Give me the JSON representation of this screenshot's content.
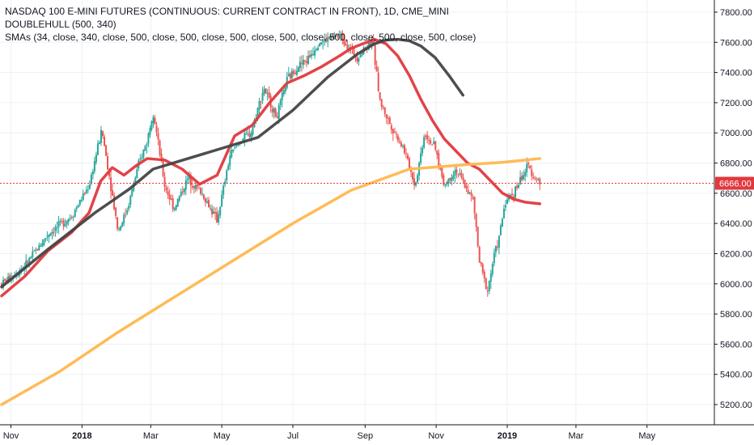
{
  "legend": {
    "title": "NASDAQ 100 E-MINI FUTURES (CONTINUOUS: CURRENT CONTRACT IN FRONT), 1D, CME_MINI",
    "indicator1": "DOUBLEHULL (500, 340)",
    "indicator2": "SMAs (34, close, 340, close, 500, close, 500, close, 500, close, 500, close, 500, close, 500, close, 500, close)"
  },
  "chart_data": {
    "type": "candlestick",
    "ylim": [
      5100,
      7850
    ],
    "y_ticks": [
      5200,
      5400,
      5600,
      5800,
      6000,
      6200,
      6400,
      6600,
      6800,
      7000,
      7200,
      7400,
      7600,
      7800
    ],
    "y_tick_labels": [
      "5200.00",
      "5400.00",
      "5600.00",
      "5800.00",
      "6000.00",
      "6200.00",
      "6400.00",
      "6600.00",
      "6800.00",
      "7000.00",
      "7200.00",
      "7400.00",
      "7600.00",
      "7800.00"
    ],
    "x_tick_labels": [
      {
        "label": "Nov",
        "day": 8,
        "bold": false
      },
      {
        "label": "2018",
        "day": 69,
        "bold": true
      },
      {
        "label": "Mar",
        "day": 128,
        "bold": false
      },
      {
        "label": "May",
        "day": 189,
        "bold": false
      },
      {
        "label": "Jul",
        "day": 250,
        "bold": false
      },
      {
        "label": "Sep",
        "day": 312,
        "bold": false
      },
      {
        "label": "Nov",
        "day": 373,
        "bold": false
      },
      {
        "label": "2019",
        "day": 434,
        "bold": true
      },
      {
        "label": "Mar",
        "day": 493,
        "bold": false
      },
      {
        "label": "May",
        "day": 554,
        "bold": false
      }
    ],
    "last_price": 6666.0,
    "last_price_label": "6666.00",
    "price_path_days": [
      0,
      20,
      40,
      60,
      75,
      86,
      100,
      108,
      118,
      125,
      130,
      140,
      148,
      160,
      172,
      185,
      196,
      205,
      214,
      225,
      236,
      245,
      255,
      262,
      272,
      290,
      305,
      318,
      325,
      334,
      345,
      355,
      363,
      372,
      380,
      390,
      405,
      410,
      417,
      423,
      427,
      432,
      440,
      446,
      452,
      456,
      460,
      462
    ],
    "price_path_values": [
      6000,
      6120,
      6330,
      6450,
      6650,
      7020,
      6350,
      6500,
      6800,
      6950,
      7150,
      6650,
      6500,
      6700,
      6600,
      6420,
      6850,
      6950,
      7000,
      7300,
      7100,
      7350,
      7450,
      7480,
      7600,
      7650,
      7500,
      7620,
      7200,
      7050,
      6900,
      6650,
      7000,
      6900,
      6650,
      6760,
      6550,
      6150,
      5950,
      6200,
      6300,
      6540,
      6610,
      6700,
      6780,
      6720,
      6690,
      6666
    ],
    "series": [
      {
        "name": "SMA 34",
        "color": "#e0393e",
        "x": [
          0,
          20,
          40,
          60,
          75,
          85,
          95,
          105,
          115,
          125,
          140,
          155,
          170,
          185,
          200,
          215,
          230,
          245,
          260,
          275,
          290,
          300,
          310,
          320,
          330,
          340,
          350,
          360,
          370,
          380,
          390,
          400,
          410,
          420,
          430,
          440,
          450,
          462
        ],
        "y": [
          5920,
          6050,
          6220,
          6340,
          6470,
          6680,
          6770,
          6720,
          6780,
          6830,
          6820,
          6760,
          6660,
          6720,
          6980,
          7050,
          7200,
          7330,
          7380,
          7440,
          7510,
          7560,
          7590,
          7620,
          7590,
          7510,
          7380,
          7220,
          7080,
          6960,
          6880,
          6800,
          6760,
          6680,
          6600,
          6560,
          6540,
          6530
        ]
      },
      {
        "name": "SMA 340",
        "color": "#ffb74d",
        "x": [
          0,
          50,
          100,
          150,
          200,
          250,
          300,
          350,
          400,
          430,
          462
        ],
        "y": [
          5200,
          5420,
          5680,
          5920,
          6160,
          6400,
          6620,
          6760,
          6790,
          6805,
          6830
        ]
      },
      {
        "name": "DOUBLEHULL",
        "color": "#454545",
        "x": [
          0,
          40,
          80,
          110,
          130,
          160,
          190,
          220,
          250,
          280,
          305,
          320,
          330,
          340,
          350,
          360,
          372,
          385,
          396
        ],
        "y": [
          5980,
          6230,
          6470,
          6630,
          6760,
          6830,
          6900,
          6970,
          7150,
          7370,
          7520,
          7590,
          7615,
          7620,
          7610,
          7575,
          7500,
          7370,
          7250
        ]
      }
    ],
    "grid": true,
    "legend_position": "top-left"
  }
}
